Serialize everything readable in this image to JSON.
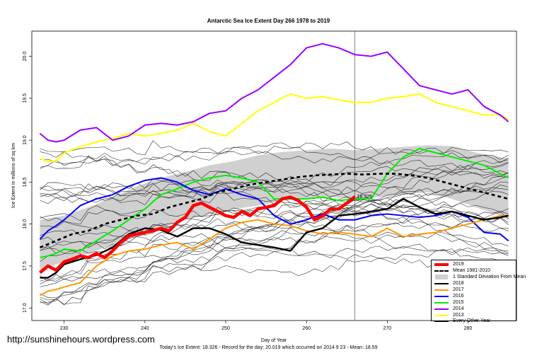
{
  "chart_data": {
    "type": "line",
    "title": "Antarctic Sea Ice Extent Day 266 1978 to 2019",
    "xlabel": "Day of Year",
    "ylabel": "Ice Extent in millions of sq km",
    "xlim": [
      226,
      286
    ],
    "ylim": [
      16.85,
      20.3
    ],
    "x_ticks": [
      230,
      240,
      250,
      260,
      270,
      280
    ],
    "y_ticks": [
      "17.0",
      "17.5",
      "18.0",
      "18.5",
      "19.0",
      "19.5",
      "20.0"
    ],
    "vline_day": 266,
    "today_label": "18.326",
    "grid": false,
    "legend_position": "bottom-right",
    "band": {
      "name": "1 Standard Deviation From Mean",
      "color": "#d0d0d0",
      "x": [
        227,
        230,
        233,
        236,
        239,
        242,
        245,
        248,
        251,
        254,
        257,
        260,
        263,
        266,
        269,
        272,
        275,
        278,
        281,
        284,
        285
      ],
      "upper": [
        18.05,
        18.1,
        18.2,
        18.32,
        18.45,
        18.55,
        18.62,
        18.7,
        18.75,
        18.82,
        18.86,
        18.88,
        18.9,
        18.88,
        18.9,
        18.92,
        18.94,
        18.93,
        18.85,
        18.8,
        18.78
      ],
      "lower": [
        17.45,
        17.55,
        17.65,
        17.75,
        17.85,
        17.95,
        18.05,
        18.12,
        18.18,
        18.22,
        18.28,
        18.3,
        18.32,
        18.3,
        18.32,
        18.35,
        18.38,
        18.3,
        18.2,
        18.1,
        18.05
      ]
    },
    "series": [
      {
        "name": "2019",
        "color": "#ff0000",
        "width": 4.5,
        "dash": "",
        "x": [
          227,
          228,
          229,
          230,
          231,
          232,
          233,
          234,
          235,
          236,
          237,
          238,
          239,
          240,
          241,
          242,
          243,
          244,
          245,
          246,
          247,
          248,
          249,
          250,
          251,
          252,
          253,
          254,
          255,
          256,
          257,
          258,
          259,
          260,
          261,
          262,
          263,
          264,
          265,
          266
        ],
        "y": [
          17.42,
          17.5,
          17.45,
          17.55,
          17.58,
          17.62,
          17.6,
          17.65,
          17.6,
          17.68,
          17.78,
          17.86,
          17.88,
          17.9,
          17.92,
          17.95,
          17.92,
          18.02,
          18.08,
          18.22,
          18.25,
          18.2,
          18.15,
          18.1,
          18.08,
          18.15,
          18.1,
          18.18,
          18.2,
          18.22,
          18.3,
          18.32,
          18.28,
          18.2,
          18.05,
          18.1,
          18.18,
          18.18,
          18.25,
          18.326
        ]
      },
      {
        "name": "Mean 1981-2010",
        "color": "#000000",
        "width": 2.6,
        "dash": "5,4",
        "x": [
          227,
          229,
          231,
          233,
          235,
          237,
          239,
          241,
          243,
          245,
          247,
          249,
          251,
          253,
          255,
          257,
          259,
          261,
          263,
          265,
          267,
          269,
          271,
          273,
          275,
          277,
          279,
          281,
          283,
          285
        ],
        "y": [
          17.72,
          17.8,
          17.88,
          17.92,
          18.0,
          18.05,
          18.1,
          18.12,
          18.2,
          18.25,
          18.3,
          18.38,
          18.42,
          18.47,
          18.5,
          18.53,
          18.56,
          18.58,
          18.59,
          18.6,
          18.59,
          18.6,
          18.6,
          18.58,
          18.55,
          18.5,
          18.45,
          18.4,
          18.35,
          18.3
        ]
      },
      {
        "name": "2018",
        "color": "#000000",
        "width": 2.4,
        "dash": "",
        "x": [
          227,
          228,
          229,
          230,
          232,
          234,
          236,
          238,
          240,
          242,
          244,
          246,
          248,
          250,
          252,
          254,
          256,
          258,
          260,
          262,
          264,
          266,
          268,
          270,
          272,
          274,
          276,
          278,
          280,
          282,
          284,
          285
        ],
        "y": [
          17.36,
          17.36,
          17.42,
          17.52,
          17.58,
          17.63,
          17.72,
          17.88,
          17.95,
          17.93,
          17.85,
          17.95,
          17.95,
          17.88,
          17.78,
          17.75,
          17.72,
          17.68,
          17.9,
          17.95,
          18.1,
          18.12,
          18.15,
          18.18,
          18.3,
          18.2,
          18.12,
          18.15,
          18.1,
          18.05,
          18.08,
          18.1
        ]
      },
      {
        "name": "2017",
        "color": "#ff9900",
        "width": 2.0,
        "dash": "",
        "x": [
          227,
          228,
          229,
          230,
          232,
          234,
          236,
          238,
          240,
          242,
          244,
          246,
          248,
          250,
          252,
          254,
          256,
          258,
          260,
          262,
          264,
          266,
          268,
          270,
          272,
          274,
          276,
          278,
          280,
          282,
          284,
          285
        ],
        "y": [
          17.15,
          17.2,
          17.22,
          17.25,
          17.3,
          17.5,
          17.62,
          17.68,
          17.7,
          17.75,
          17.78,
          17.7,
          17.82,
          17.95,
          18.02,
          18.05,
          18.0,
          17.98,
          17.92,
          17.88,
          17.9,
          17.88,
          17.85,
          17.95,
          17.85,
          17.88,
          17.9,
          17.95,
          18.0,
          18.05,
          18.1,
          18.1
        ]
      },
      {
        "name": "2016",
        "color": "#0000ff",
        "width": 2.0,
        "dash": "",
        "x": [
          227,
          228,
          229,
          230,
          232,
          234,
          236,
          238,
          240,
          242,
          244,
          246,
          248,
          250,
          252,
          254,
          256,
          258,
          260,
          262,
          264,
          266,
          268,
          270,
          272,
          274,
          276,
          278,
          280,
          282,
          284,
          285
        ],
        "y": [
          17.82,
          17.92,
          17.98,
          18.05,
          18.22,
          18.3,
          18.35,
          18.45,
          18.52,
          18.55,
          18.5,
          18.4,
          18.35,
          18.42,
          18.35,
          18.3,
          18.1,
          18.0,
          18.05,
          18.12,
          18.05,
          18.05,
          18.1,
          18.12,
          18.1,
          18.08,
          18.1,
          18.15,
          18.08,
          17.9,
          17.88,
          17.8
        ]
      },
      {
        "name": "2015",
        "color": "#00ee00",
        "width": 2.0,
        "dash": "",
        "x": [
          227,
          228,
          229,
          230,
          232,
          234,
          236,
          238,
          240,
          242,
          244,
          246,
          248,
          250,
          252,
          254,
          256,
          258,
          260,
          262,
          264,
          266,
          268,
          270,
          272,
          274,
          276,
          278,
          280,
          282,
          284,
          285
        ],
        "y": [
          17.6,
          17.62,
          17.65,
          17.7,
          17.68,
          17.8,
          17.92,
          18.05,
          18.18,
          18.35,
          18.42,
          18.5,
          18.55,
          18.58,
          18.55,
          18.5,
          18.3,
          18.3,
          18.3,
          18.32,
          18.28,
          18.3,
          18.3,
          18.6,
          18.8,
          18.9,
          18.85,
          18.8,
          18.75,
          18.7,
          18.6,
          18.55
        ]
      },
      {
        "name": "2014",
        "color": "#9900ff",
        "width": 2.0,
        "dash": "",
        "x": [
          227,
          228,
          229,
          230,
          232,
          234,
          236,
          238,
          240,
          242,
          244,
          246,
          248,
          250,
          252,
          254,
          256,
          258,
          260,
          262,
          264,
          266,
          268,
          270,
          272,
          274,
          276,
          278,
          280,
          282,
          284,
          285
        ],
        "y": [
          19.08,
          19.0,
          18.98,
          19.0,
          19.12,
          19.15,
          19.0,
          19.05,
          19.18,
          19.2,
          19.18,
          19.22,
          19.32,
          19.35,
          19.5,
          19.6,
          19.75,
          19.9,
          20.1,
          20.15,
          20.1,
          20.02,
          20.0,
          20.05,
          19.85,
          19.65,
          19.6,
          19.55,
          19.6,
          19.4,
          19.3,
          19.22
        ]
      },
      {
        "name": "2013",
        "color": "#ffff00",
        "width": 2.0,
        "dash": "",
        "x": [
          227,
          228,
          229,
          230,
          232,
          234,
          236,
          238,
          240,
          242,
          244,
          246,
          248,
          250,
          252,
          254,
          256,
          258,
          260,
          262,
          264,
          266,
          268,
          270,
          272,
          274,
          276,
          278,
          280,
          282,
          284,
          285
        ],
        "y": [
          18.78,
          18.75,
          18.75,
          18.85,
          18.92,
          18.98,
          19.02,
          19.08,
          19.05,
          19.08,
          19.12,
          19.2,
          19.1,
          19.05,
          19.2,
          19.35,
          19.45,
          19.55,
          19.5,
          19.52,
          19.48,
          19.45,
          19.45,
          19.5,
          19.52,
          19.55,
          19.45,
          19.4,
          19.35,
          19.3,
          19.3,
          19.25
        ]
      }
    ],
    "other_years_name": "Every Other Year"
  },
  "labels": {
    "watermark": "http://sunshinehours.wordpress.com",
    "footer": "Today's Ice Extent: 18.326   - Record for the day: 20.019 which occurred on 2014 9 23   - Mean: 18.59"
  }
}
